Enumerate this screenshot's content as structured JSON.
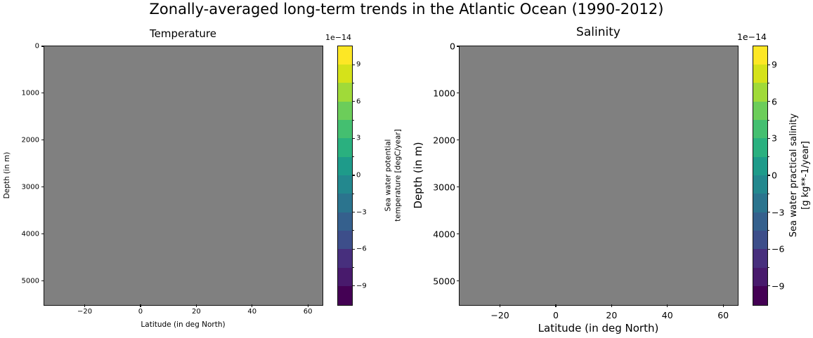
{
  "figure": {
    "title": "Zonally-averaged long-term trends in the Atlantic Ocean (1990-2012)",
    "background_color": "#ffffff",
    "nodata_fill_color": "#808080"
  },
  "chart_data": [
    {
      "type": "heatmap",
      "panel": "left",
      "title": "Temperature",
      "xlabel": "Latitude (in deg North)",
      "ylabel": "Depth (in m)",
      "xlim": [
        -34.5,
        65
      ],
      "ylim": [
        5500,
        0
      ],
      "xtick_values": [
        -20,
        0,
        20,
        40,
        60
      ],
      "xtick_labels": [
        "−20",
        "0",
        "20",
        "40",
        "60"
      ],
      "ytick_values": [
        0,
        1000,
        2000,
        3000,
        4000,
        5000
      ],
      "ytick_labels": [
        "0",
        "1000",
        "2000",
        "3000",
        "4000",
        "5000"
      ],
      "grid": false,
      "field": "no visible data — entire plot area is uniform gray (masked/NaN trend field)",
      "field_color": "#808080",
      "colorbar": {
        "colormap": "viridis",
        "offset_label": "1e−14",
        "label_lines": [
          "Sea water potential",
          "temperature [degC/year]"
        ],
        "vmin": -10.5,
        "vmax": 10.5,
        "band_step": 1.5,
        "n_bands": 14,
        "band_colors_bottom_to_top": [
          "#440154",
          "#481a6c",
          "#472f7d",
          "#3d4e8a",
          "#35608d",
          "#2b748e",
          "#23888e",
          "#1e9b8a",
          "#2ab07f",
          "#44bf70",
          "#6ccd5a",
          "#a0da39",
          "#d5e21a",
          "#fde725"
        ],
        "major_tick_values": [
          9,
          6,
          3,
          0,
          -3,
          -6,
          -9
        ],
        "major_tick_labels": [
          "9",
          "6",
          "3",
          "0",
          "−3",
          "−6",
          "−9"
        ],
        "minor_tick_values": [
          7.5,
          4.5,
          1.5,
          -1.5,
          -4.5,
          -7.5
        ]
      }
    },
    {
      "type": "heatmap",
      "panel": "right",
      "title": "Salinity",
      "xlabel": "Latitude (in deg North)",
      "ylabel": "Depth (in m)",
      "xlim": [
        -34.5,
        65
      ],
      "ylim": [
        5500,
        0
      ],
      "xtick_values": [
        -20,
        0,
        20,
        40,
        60
      ],
      "xtick_labels": [
        "−20",
        "0",
        "20",
        "40",
        "60"
      ],
      "ytick_values": [
        0,
        1000,
        2000,
        3000,
        4000,
        5000
      ],
      "ytick_labels": [
        "0",
        "1000",
        "2000",
        "3000",
        "4000",
        "5000"
      ],
      "grid": false,
      "field": "no visible data — entire plot area is uniform gray (masked/NaN trend field)",
      "field_color": "#808080",
      "colorbar": {
        "colormap": "viridis",
        "offset_label": "1e−14",
        "label_lines": [
          "Sea water practical salinity",
          "[g kg**-1/year]"
        ],
        "vmin": -10.5,
        "vmax": 10.5,
        "band_step": 1.5,
        "n_bands": 14,
        "band_colors_bottom_to_top": [
          "#440154",
          "#481a6c",
          "#472f7d",
          "#3d4e8a",
          "#35608d",
          "#2b748e",
          "#23888e",
          "#1e9b8a",
          "#2ab07f",
          "#44bf70",
          "#6ccd5a",
          "#a0da39",
          "#d5e21a",
          "#fde725"
        ],
        "major_tick_values": [
          9,
          6,
          3,
          0,
          -3,
          -6,
          -9
        ],
        "major_tick_labels": [
          "9",
          "6",
          "3",
          "0",
          "−3",
          "−6",
          "−9"
        ],
        "minor_tick_values": [
          7.5,
          4.5,
          1.5,
          -1.5,
          -4.5,
          -7.5
        ]
      }
    }
  ]
}
